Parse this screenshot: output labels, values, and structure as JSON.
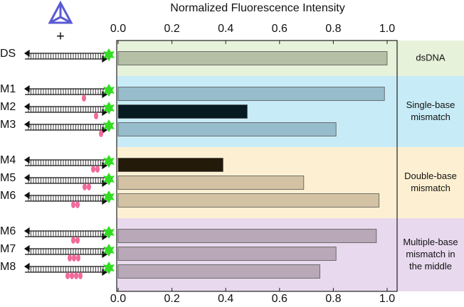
{
  "chart_data": {
    "type": "bar",
    "orientation": "horizontal",
    "x_label": "Normalized Fluorescence Intensity",
    "categories": [
      "DS",
      "M1",
      "M2",
      "M3",
      "M4",
      "M5",
      "M6",
      "M6",
      "M7",
      "M8"
    ],
    "values": [
      1.0,
      0.99,
      0.48,
      0.81,
      0.39,
      0.69,
      0.97,
      0.96,
      0.81,
      0.75
    ],
    "colors": [
      "#b5bfa5",
      "#97bccb",
      "#061a22",
      "#97bccb",
      "#241a0a",
      "#d3c3a4",
      "#d3c3a4",
      "#b9a8b8",
      "#b9a8b8",
      "#b9a8b8"
    ],
    "groups": [
      {
        "lines": [
          "dsDNA"
        ],
        "size": 1,
        "color": "#e6f2da"
      },
      {
        "lines": [
          "Single-base",
          "mismatch"
        ],
        "size": 3,
        "color": "#c8ecf7"
      },
      {
        "lines": [
          "Double-base",
          "mismatch"
        ],
        "size": 3,
        "color": "#fdf0d2"
      },
      {
        "lines": [
          "Multiple-base",
          "mismatch in",
          "the middle"
        ],
        "size": 3,
        "color": "#e8d9ee"
      }
    ],
    "xlim": [
      0,
      1
    ],
    "xticks": [
      {
        "value": 0,
        "label": "0.0"
      },
      {
        "value": 0.2,
        "label": "0.2"
      },
      {
        "value": 0.4,
        "label": "0.4"
      },
      {
        "value": 0.6,
        "label": "0.6"
      },
      {
        "value": 0.8,
        "label": "0.8"
      },
      {
        "value": 1,
        "label": "1.0"
      }
    ]
  }
}
